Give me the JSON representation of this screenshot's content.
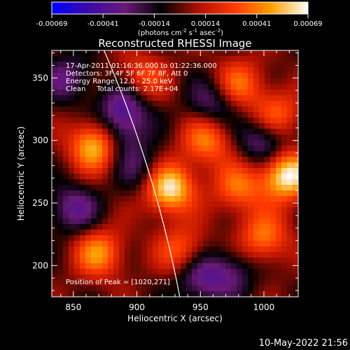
{
  "colorbar": {
    "ticks": [
      "-0.00069",
      "-0.00041",
      "-0.00014",
      "0.00014",
      "0.00041",
      "0.00069"
    ],
    "unit": {
      "prefix": "(photons cm",
      "exp1": "-2",
      "mid1": " s",
      "exp2": "-1",
      "mid2": " asec",
      "exp3": "-2",
      "suffix": ")"
    },
    "colormap": [
      "#0000ff",
      "#3a0aa8",
      "#6a1a78",
      "#000000",
      "#b01000",
      "#ff3a00",
      "#ffa000",
      "#ffffff"
    ]
  },
  "chart_data": {
    "type": "heatmap",
    "title": "Reconstructed RHESSI Image",
    "xlabel": "Heliocentric X (arcsec)",
    "ylabel": "Heliocentric Y (arcsec)",
    "xlim": [
      833,
      1027
    ],
    "ylim": [
      175,
      372
    ],
    "x_ticks": [
      "850",
      "900",
      "950",
      "1000"
    ],
    "y_ticks": [
      "200",
      "250",
      "300",
      "350"
    ],
    "x_tick_values": [
      850,
      900,
      950,
      1000
    ],
    "y_tick_values": [
      200,
      250,
      300,
      350
    ],
    "annotations": [
      "17-Apr-2011 01:16:36.000 to 01:22:36.000",
      "Detectors: 3F 4F 5F 6F 7F 8F, Att 0",
      "Energy Range: 12.0 - 25.0 keV",
      "Clean     Total counts: 2.17E+04"
    ],
    "peak_label": "Position of Peak = [1020,271]",
    "peak": [
      1020,
      271
    ],
    "value_range": [
      -0.00069,
      0.00069
    ],
    "sources": [
      {
        "x": 925,
        "y": 262,
        "amp": 1.0
      },
      {
        "x": 868,
        "y": 296,
        "amp": 0.95
      },
      {
        "x": 1018,
        "y": 272,
        "amp": 1.0
      },
      {
        "x": 955,
        "y": 300,
        "amp": 0.6
      },
      {
        "x": 980,
        "y": 262,
        "amp": 0.55
      },
      {
        "x": 980,
        "y": 345,
        "amp": 0.55
      },
      {
        "x": 870,
        "y": 210,
        "amp": 0.65
      },
      {
        "x": 1000,
        "y": 222,
        "amp": 0.6
      },
      {
        "x": 935,
        "y": 212,
        "amp": 0.5
      },
      {
        "x": 905,
        "y": 350,
        "amp": 0.45
      },
      {
        "x": 1010,
        "y": 320,
        "amp": 0.55
      },
      {
        "x": 850,
        "y": 245,
        "amp": -0.5
      },
      {
        "x": 890,
        "y": 325,
        "amp": -0.6
      },
      {
        "x": 885,
        "y": 300,
        "amp": -0.45
      },
      {
        "x": 1000,
        "y": 300,
        "amp": -0.55
      },
      {
        "x": 950,
        "y": 190,
        "amp": -0.5
      },
      {
        "x": 960,
        "y": 330,
        "amp": -0.45
      },
      {
        "x": 845,
        "y": 350,
        "amp": -0.4
      },
      {
        "x": 905,
        "y": 275,
        "amp": -0.35
      },
      {
        "x": 975,
        "y": 195,
        "amp": -0.35
      }
    ],
    "grid": false
  },
  "limb": {
    "center": [
      0,
      0
    ],
    "radius": 950
  },
  "footer": {
    "timestamp": "10-May-2022 21:56"
  }
}
